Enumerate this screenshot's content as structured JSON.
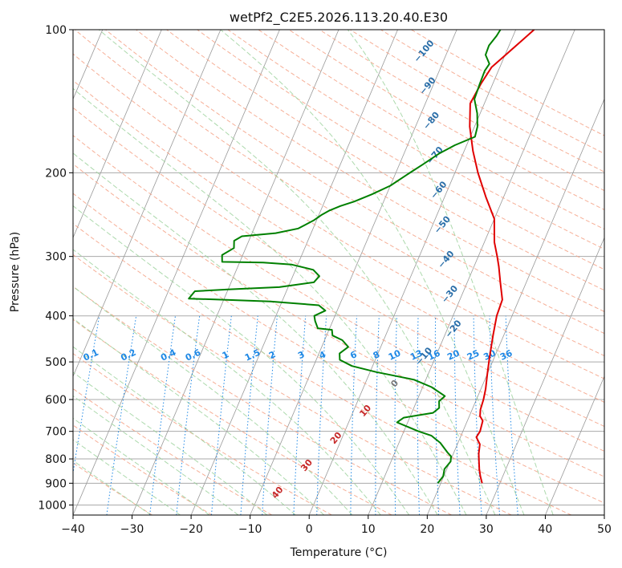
{
  "chart_data": {
    "type": "line",
    "title": "wetPf2_C2E5.2026.113.20.40.E30",
    "xlabel": "Temperature (°C)",
    "ylabel": "Pressure (hPa)",
    "xlim": [
      -40,
      50
    ],
    "ylim": [
      1050,
      100
    ],
    "y_scale": "log",
    "grid": true,
    "x_ticks": [
      "-40",
      "-30",
      "-20",
      "-10",
      "0",
      "10",
      "20",
      "30",
      "40",
      "50"
    ],
    "y_ticks": [
      "100",
      "200",
      "300",
      "400",
      "500",
      "600",
      "700",
      "800",
      "900",
      "1000"
    ],
    "series": [
      {
        "color": "#e00000",
        "points": [
          [
            27.0,
            900
          ],
          [
            26.2,
            870
          ],
          [
            25.5,
            840
          ],
          [
            24.9,
            810
          ],
          [
            24.3,
            780
          ],
          [
            23.8,
            745
          ],
          [
            22.7,
            720
          ],
          [
            22.9,
            700
          ],
          [
            22.6,
            665
          ],
          [
            21.8,
            650
          ],
          [
            21.4,
            630
          ],
          [
            21.2,
            600
          ],
          [
            20.8,
            570
          ],
          [
            20.0,
            530
          ],
          [
            19.2,
            490
          ],
          [
            18.2,
            440
          ],
          [
            17.4,
            400
          ],
          [
            17.2,
            370
          ],
          [
            15.6,
            340
          ],
          [
            14.2,
            315
          ],
          [
            13.2,
            300
          ],
          [
            11.7,
            280
          ],
          [
            10.0,
            250
          ],
          [
            7.0,
            225
          ],
          [
            3.9,
            200
          ],
          [
            1.5,
            180
          ],
          [
            -0.8,
            160
          ],
          [
            -2.4,
            143
          ],
          [
            -2.0,
            130
          ],
          [
            -1.4,
            120
          ],
          [
            0.3,
            112
          ],
          [
            1.9,
            105
          ],
          [
            3.1,
            100
          ]
        ]
      },
      {
        "color": "#008000",
        "points": [
          [
            19.5,
            900
          ],
          [
            19.9,
            870
          ],
          [
            19.6,
            840
          ],
          [
            20.1,
            810
          ],
          [
            19.8,
            790
          ],
          [
            18.9,
            775
          ],
          [
            17.0,
            740
          ],
          [
            15.0,
            715
          ],
          [
            12.5,
            700
          ],
          [
            8.2,
            670
          ],
          [
            9.0,
            655
          ],
          [
            13.6,
            640
          ],
          [
            14.3,
            625
          ],
          [
            13.8,
            605
          ],
          [
            14.4,
            590
          ],
          [
            11.5,
            565
          ],
          [
            8.0,
            545
          ],
          [
            1.0,
            525
          ],
          [
            -3.5,
            510
          ],
          [
            -6.0,
            495
          ],
          [
            -6.5,
            480
          ],
          [
            -5.5,
            465
          ],
          [
            -7.0,
            450
          ],
          [
            -9.0,
            440
          ],
          [
            -9.5,
            428
          ],
          [
            -12.0,
            425
          ],
          [
            -13.0,
            410
          ],
          [
            -13.5,
            400
          ],
          [
            -12.0,
            390
          ],
          [
            -13.5,
            380
          ],
          [
            -22.0,
            373
          ],
          [
            -30.0,
            370
          ],
          [
            -36.0,
            368
          ],
          [
            -35.5,
            355
          ],
          [
            -30.0,
            352
          ],
          [
            -21.5,
            348
          ],
          [
            -16.0,
            340
          ],
          [
            -15.5,
            330
          ],
          [
            -17.0,
            320
          ],
          [
            -21.0,
            312
          ],
          [
            -26.0,
            309
          ],
          [
            -33.0,
            308
          ],
          [
            -33.5,
            298
          ],
          [
            -32.0,
            288
          ],
          [
            -32.5,
            278
          ],
          [
            -31.5,
            272
          ],
          [
            -26.0,
            268
          ],
          [
            -22.5,
            262
          ],
          [
            -20.5,
            252
          ],
          [
            -19.5,
            245
          ],
          [
            -18.5,
            240
          ],
          [
            -17.0,
            235
          ],
          [
            -15.0,
            230
          ],
          [
            -12.5,
            222
          ],
          [
            -10.0,
            213
          ],
          [
            -8.0,
            202
          ],
          [
            -6.0,
            192
          ],
          [
            -4.0,
            182
          ],
          [
            -2.0,
            175
          ],
          [
            0.8,
            168
          ],
          [
            0.5,
            160
          ],
          [
            -0.5,
            150
          ],
          [
            -2.0,
            140
          ],
          [
            -2.2,
            130
          ],
          [
            -2.3,
            122
          ],
          [
            -2.0,
            118
          ],
          [
            -3.3,
            113
          ],
          [
            -3.4,
            108
          ],
          [
            -2.8,
            103
          ],
          [
            -2.6,
            100
          ]
        ]
      }
    ],
    "dry_adiabat_labels": [
      "-100",
      "-90",
      "-80",
      "-70",
      "-60",
      "-50",
      "-40",
      "-30",
      "-20",
      "-10",
      "0",
      "10",
      "20",
      "30",
      "40"
    ],
    "mixing_ratio_labels": [
      "0.1",
      "0.2",
      "0.4",
      "0.6",
      "1",
      "1.5",
      "2",
      "3",
      "4",
      "6",
      "8",
      "10",
      "13",
      "16",
      "20",
      "25",
      "30",
      "36"
    ],
    "colors": {
      "temperature": "#e00000",
      "dewpoint": "#008000",
      "dry_adiabat": "#f5a185",
      "moist_adiabat": "#9dd29d",
      "mixing_ratio": "#1e88e5",
      "isotherm": "#999999",
      "isobar": "#aaaaaa",
      "cold_label": "#2a6ea8",
      "warm_label": "#c62828",
      "zero_label": "#777777"
    }
  }
}
